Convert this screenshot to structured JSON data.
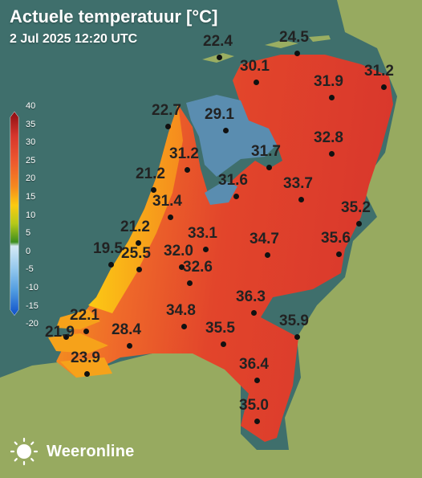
{
  "title": "Actuele temperatuur [°C]",
  "subtitle": "2 Jul 2025 12:20 UTC",
  "legend": {
    "ticks": [
      "40",
      "35",
      "30",
      "25",
      "20",
      "15",
      "10",
      "5",
      "0",
      "-5",
      "-10",
      "-15",
      "-20"
    ],
    "colors": {
      "c40": "#8b0c12",
      "c35": "#d7362d",
      "c30": "#ee5a2e",
      "c25": "#f58a1e",
      "c20": "#fccb10",
      "c15": "#b5c919",
      "c10": "#7cab1c",
      "c5": "#3c8d1e",
      "c0": "#d6eaf6",
      "cm5": "#8ec5ec",
      "cm10": "#4f9be0",
      "cm20": "#0e4fc9"
    }
  },
  "stations": [
    {
      "value": "22.4"
    },
    {
      "value": "24.5"
    },
    {
      "value": "30.1"
    },
    {
      "value": "31.2"
    },
    {
      "value": "31.9"
    },
    {
      "value": "22.7"
    },
    {
      "value": "29.1"
    },
    {
      "value": "32.8"
    },
    {
      "value": "31.2"
    },
    {
      "value": "31.7"
    },
    {
      "value": "21.2"
    },
    {
      "value": "31.6"
    },
    {
      "value": "33.7"
    },
    {
      "value": "31.4"
    },
    {
      "value": "35.2"
    },
    {
      "value": "21.2"
    },
    {
      "value": "33.1"
    },
    {
      "value": "34.7"
    },
    {
      "value": "35.6"
    },
    {
      "value": "19.5"
    },
    {
      "value": "25.5"
    },
    {
      "value": "32.0"
    },
    {
      "value": "32.6"
    },
    {
      "value": "36.3"
    },
    {
      "value": "22.1"
    },
    {
      "value": "34.8"
    },
    {
      "value": "35.9"
    },
    {
      "value": "21.9"
    },
    {
      "value": "28.4"
    },
    {
      "value": "35.5"
    },
    {
      "value": "23.9"
    },
    {
      "value": "36.4"
    },
    {
      "value": "35.0"
    }
  ],
  "brand": {
    "name": "Weeronline",
    "logo_icon": "sun-logo-icon"
  },
  "colors": {
    "sea": "#3f6f6c",
    "land": "#97aa60",
    "lake": "#5a8db0"
  }
}
